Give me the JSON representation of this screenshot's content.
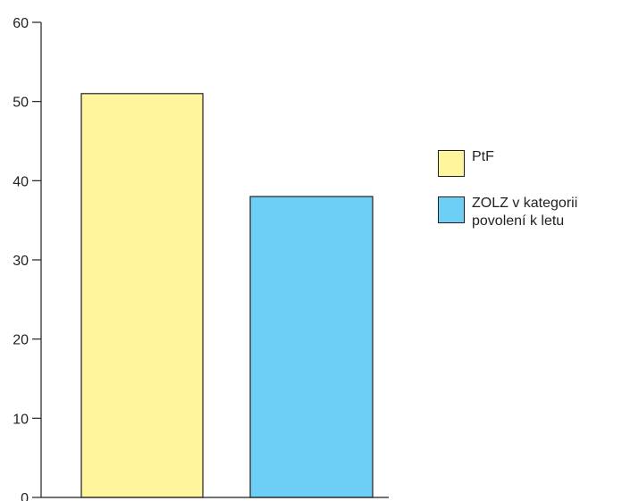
{
  "chart_data": {
    "type": "bar",
    "categories": [
      "PtF",
      "ZOLZ v kategorii povolení k letu"
    ],
    "series": [
      {
        "name": "PtF",
        "value": 51,
        "color": "#fff59d"
      },
      {
        "name": "ZOLZ v kategorii povolení k letu",
        "value": 38,
        "color": "#6dcff6"
      }
    ],
    "ylim": [
      0,
      60
    ],
    "yticks": [
      0,
      10,
      20,
      30,
      40,
      50,
      60
    ],
    "title": "",
    "xlabel": "",
    "ylabel": "",
    "grid": false,
    "legend_position": "right"
  }
}
